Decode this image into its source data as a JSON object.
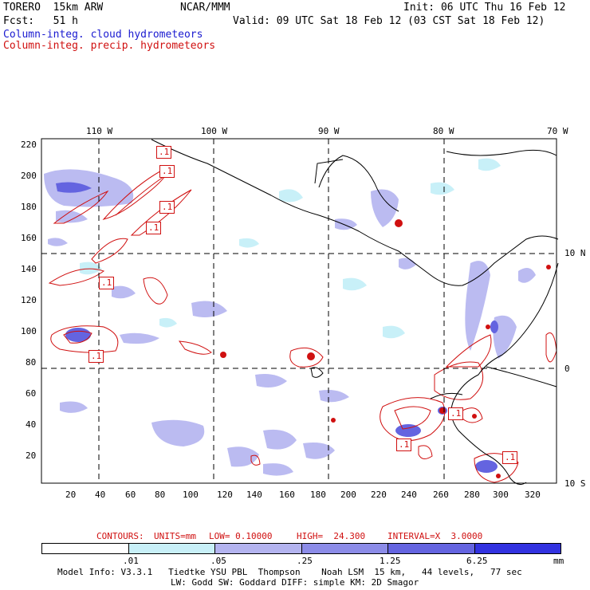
{
  "header": {
    "model": "TORERO  15km ARW",
    "org": "NCAR/MMM",
    "init": "Init: 06 UTC Thu 16 Feb 12",
    "fcst": "Fcst:   51 h",
    "valid": "Valid: 09 UTC Sat 18 Feb 12 (03 CST Sat 18 Feb 12)",
    "field_cloud": "Column-integ. cloud hydrometeors",
    "field_precip": "Column-integ. precip. hydrometeors"
  },
  "colors": {
    "cloud_text": "#1a1ad0",
    "precip": "#d01010",
    "shade_1": "#c8f0f8",
    "shade_2": "#b4b4f0",
    "shade_3": "#8c8ce8",
    "shade_4": "#6464e0",
    "shade_5": "#3232e0"
  },
  "map": {
    "lon_labels": [
      "110 W",
      "100 W",
      "90 W",
      "80 W",
      "70 W"
    ],
    "lat_labels": [
      "10 N",
      "0",
      "10 S"
    ],
    "y_ticks": [
      "220",
      "200",
      "180",
      "160",
      "140",
      "120",
      "100",
      "80",
      "60",
      "40",
      "20"
    ],
    "x_ticks": [
      "20",
      "40",
      "60",
      "80",
      "100",
      "120",
      "140",
      "160",
      "180",
      "200",
      "220",
      "240",
      "260",
      "280",
      "300",
      "320"
    ],
    "contour_labels": [
      ".1",
      ".1",
      ".1",
      ".1",
      ".1",
      ".1",
      ".1",
      ".1",
      ".1"
    ]
  },
  "contour_info": {
    "label": "CONTOURS:",
    "units": "UNITS=mm",
    "low": "LOW= 0.10000",
    "high": "HIGH=  24.300",
    "interval": "INTERVAL=X  3.0000"
  },
  "colorbar": {
    "ticks": [
      ".01",
      ".05",
      ".25",
      "1.25",
      "6.25"
    ],
    "unit": "mm"
  },
  "footer": {
    "line1": "Model Info: V3.3.1   Tiedtke YSU PBL  Thompson    Noah LSM  15 km,   44 levels,   77 sec",
    "line2": "LW: Godd SW: Goddard DIFF: simple KM: 2D Smagor"
  }
}
